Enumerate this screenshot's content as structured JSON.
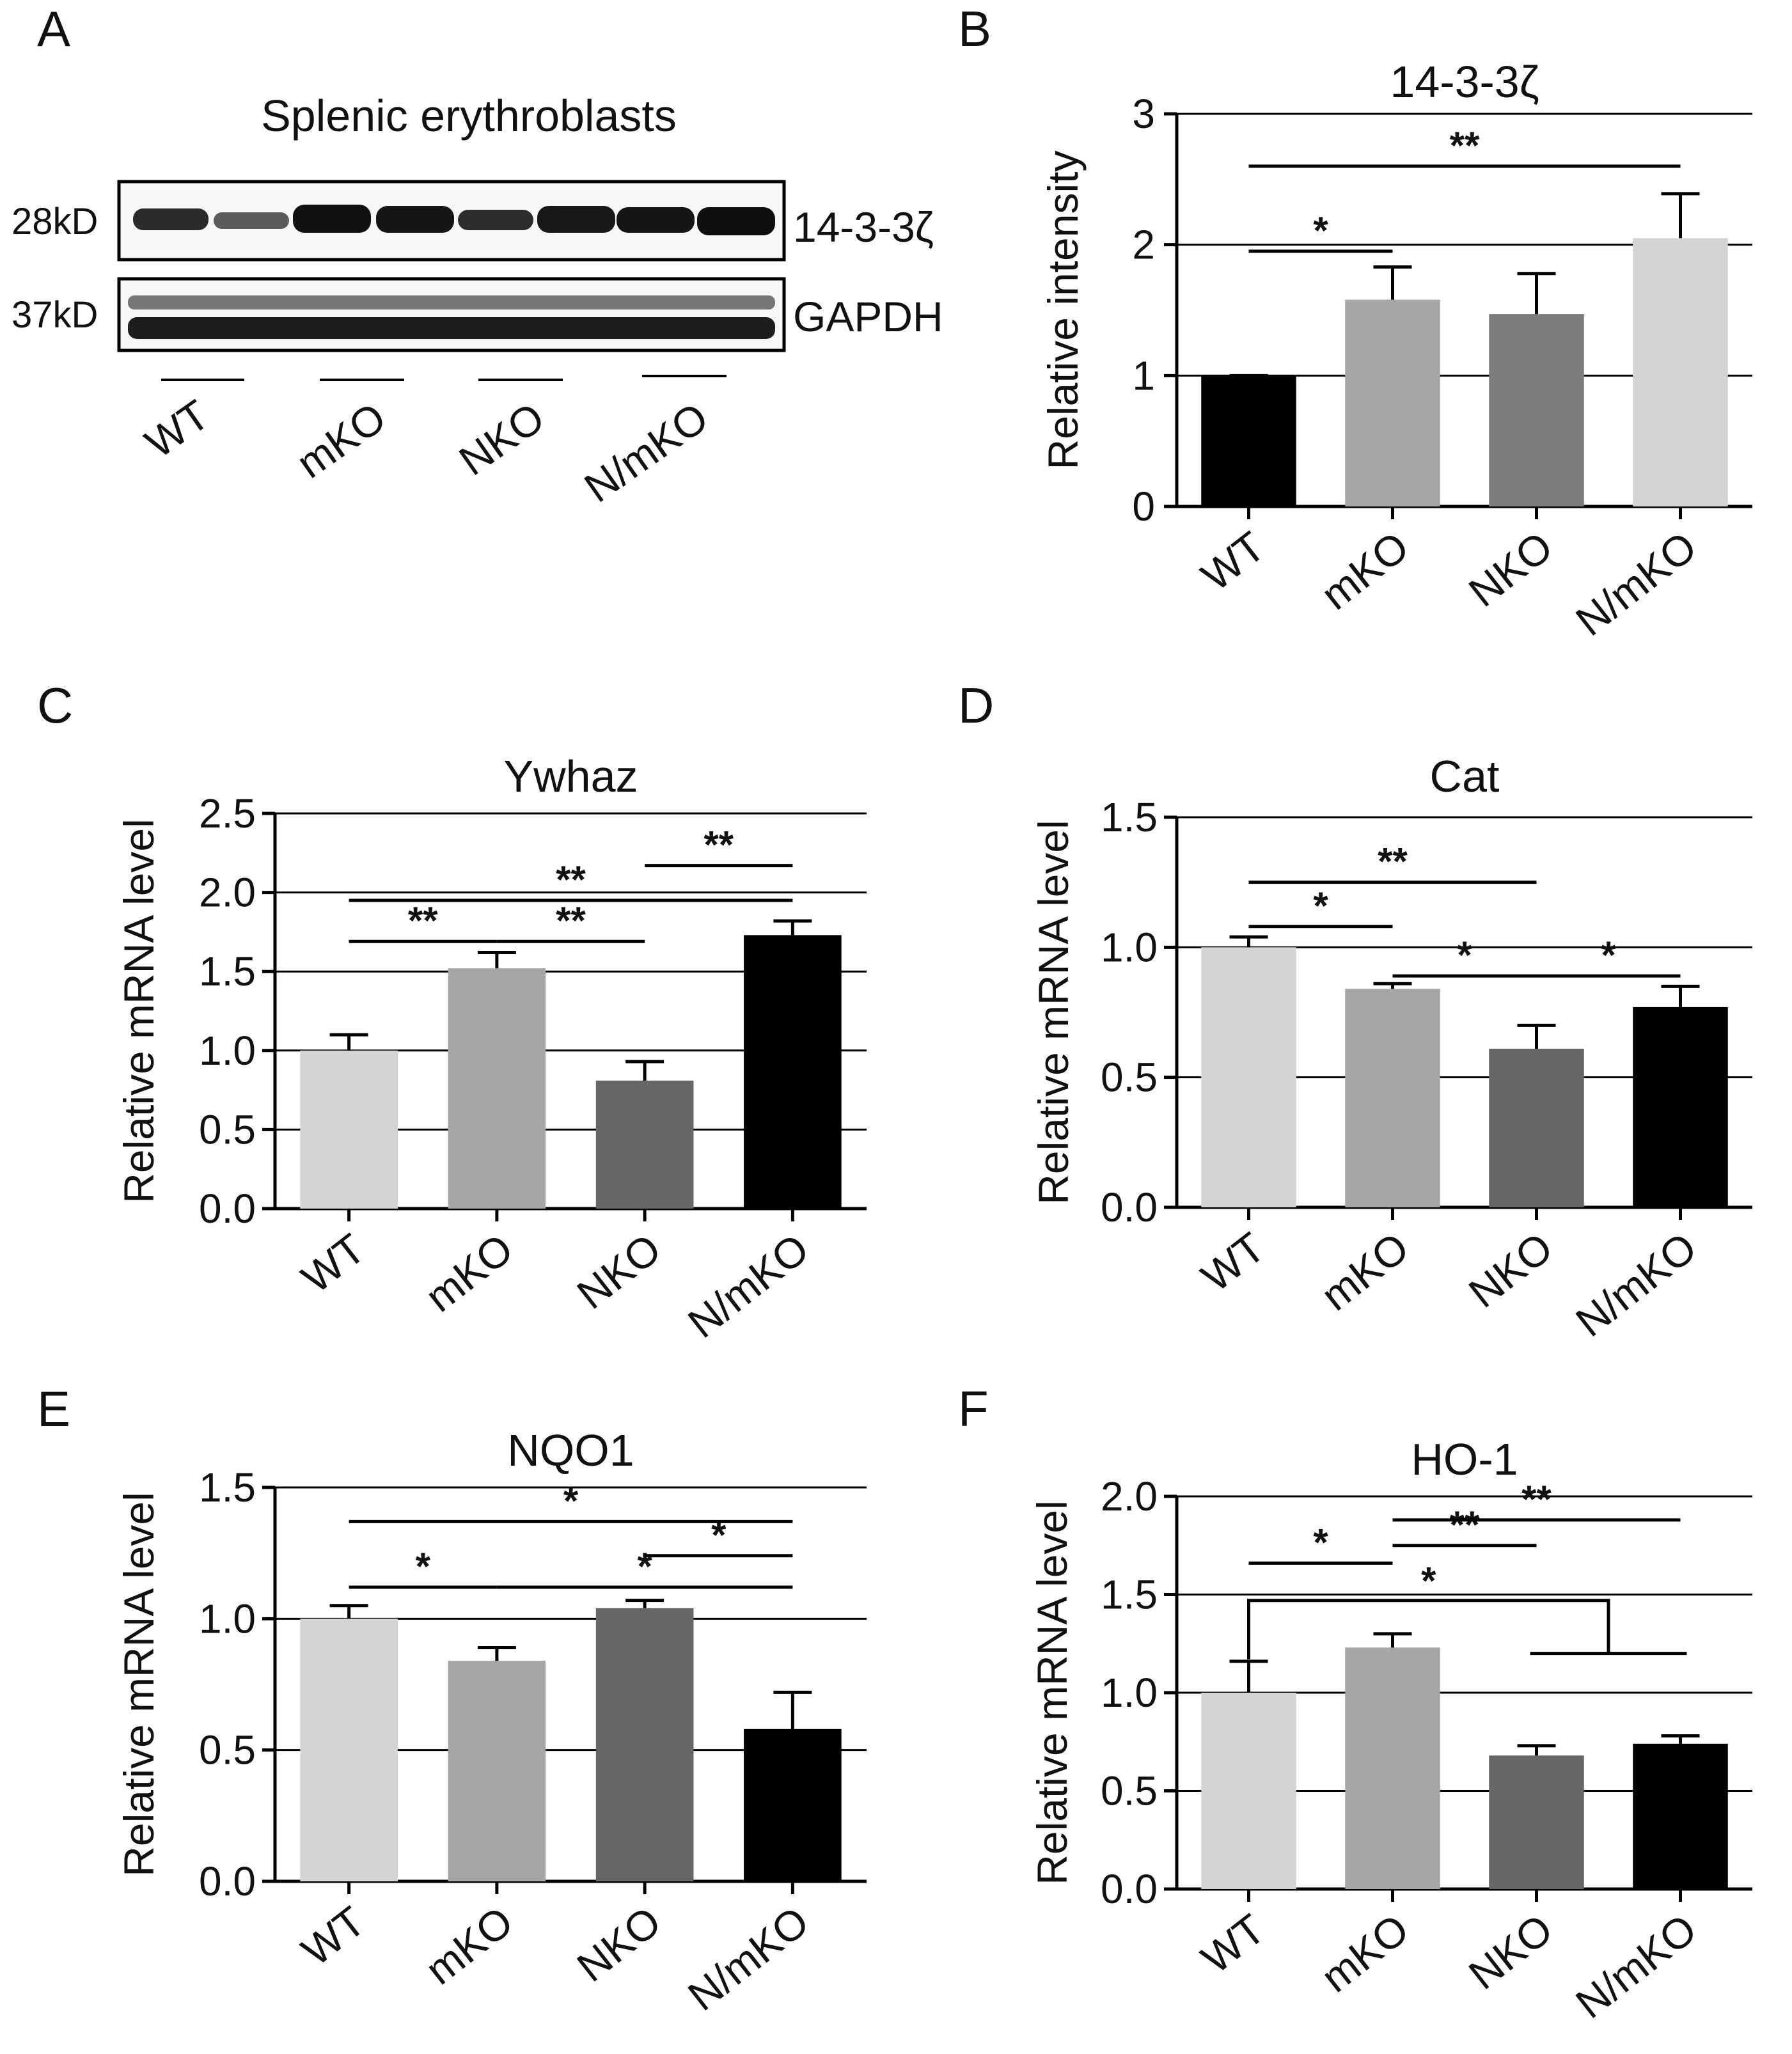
{
  "panels": {
    "A": {
      "letter": "A",
      "title": "Splenic erythroblasts",
      "rows": [
        {
          "mw": "28kD",
          "protein": "14-3-3ζ"
        },
        {
          "mw": "37kD",
          "protein": "GAPDH"
        }
      ],
      "groups": [
        "WT",
        "mKO",
        "NKO",
        "N/mKO"
      ]
    }
  },
  "chart_data": [
    {
      "panel": "B",
      "type": "bar",
      "title": "14-3-3ζ",
      "ylabel": "Relative intensity",
      "xlabel": "",
      "categories": [
        "WT",
        "mKO",
        "NKO",
        "N/mKO"
      ],
      "values": [
        1.0,
        1.58,
        1.47,
        2.05
      ],
      "errors": [
        0,
        0.25,
        0.31,
        0.34
      ],
      "colors": [
        "#000000",
        "#a6a6a8",
        "#7d7d7d",
        "#d4d4d4"
      ],
      "ylim": [
        0,
        3
      ],
      "yticks": [
        0,
        1,
        2,
        3
      ],
      "ytick_labels": [
        "0",
        "1",
        "2",
        "3"
      ],
      "gridlines": [
        1,
        2,
        3
      ],
      "significance": [
        {
          "from": 0,
          "to": 1,
          "y": 1.95,
          "label": "*"
        },
        {
          "from": 0,
          "to": 3,
          "y": 2.6,
          "label": "**"
        }
      ]
    },
    {
      "panel": "C",
      "type": "bar",
      "title": "Ywhaz",
      "ylabel": "Relative mRNA level",
      "xlabel": "",
      "categories": [
        "WT",
        "mKO",
        "NKO",
        "N/mKO"
      ],
      "values": [
        1.0,
        1.52,
        0.81,
        1.73
      ],
      "errors": [
        0.1,
        0.1,
        0.12,
        0.09
      ],
      "colors": [
        "#d4d4d4",
        "#a6a6a8",
        "#666666",
        "#000000"
      ],
      "ylim": [
        0,
        2.5
      ],
      "yticks": [
        0,
        0.5,
        1,
        1.5,
        2,
        2.5
      ],
      "ytick_labels": [
        "0.0",
        "0.5",
        "1.0",
        "1.5",
        "2.0",
        "2.5"
      ],
      "gridlines": [
        0.5,
        1,
        1.5,
        2,
        2.5
      ],
      "significance": [
        {
          "from": 0,
          "to": 1,
          "y": 1.69,
          "label": "**"
        },
        {
          "from": 1,
          "to": 2,
          "y": 1.69,
          "label": "**"
        },
        {
          "from": 0,
          "to": 3,
          "y": 1.95,
          "label": "**"
        },
        {
          "from": 2,
          "to": 3,
          "y": 2.17,
          "label": "**"
        }
      ]
    },
    {
      "panel": "D",
      "type": "bar",
      "title": "Cat",
      "ylabel": "Relative mRNA level",
      "xlabel": "",
      "categories": [
        "WT",
        "mKO",
        "NKO",
        "N/mKO"
      ],
      "values": [
        1.0,
        0.84,
        0.61,
        0.77
      ],
      "errors": [
        0.04,
        0.02,
        0.09,
        0.08
      ],
      "colors": [
        "#d4d4d4",
        "#a6a6a8",
        "#666666",
        "#000000"
      ],
      "ylim": [
        0,
        1.5
      ],
      "yticks": [
        0,
        0.5,
        1,
        1.5
      ],
      "ytick_labels": [
        "0.0",
        "0.5",
        "1.0",
        "1.5"
      ],
      "gridlines": [
        0.5,
        1,
        1.5
      ],
      "significance": [
        {
          "from": 0,
          "to": 1,
          "y": 1.08,
          "label": "*"
        },
        {
          "from": 0,
          "to": 2,
          "y": 1.25,
          "label": "**"
        },
        {
          "from": 1,
          "to": 2,
          "y": 0.89,
          "label": "*"
        },
        {
          "from": 2,
          "to": 3,
          "y": 0.89,
          "label": "*"
        }
      ]
    },
    {
      "panel": "E",
      "type": "bar",
      "title": "NQO1",
      "ylabel": "Relative mRNA level",
      "xlabel": "",
      "categories": [
        "WT",
        "mKO",
        "NKO",
        "N/mKO"
      ],
      "values": [
        1.0,
        0.84,
        1.04,
        0.58
      ],
      "errors": [
        0.05,
        0.05,
        0.03,
        0.14
      ],
      "colors": [
        "#d4d4d4",
        "#a6a6a8",
        "#666666",
        "#000000"
      ],
      "ylim": [
        0,
        1.5
      ],
      "yticks": [
        0,
        0.5,
        1,
        1.5
      ],
      "ytick_labels": [
        "0.0",
        "0.5",
        "1.0",
        "1.5"
      ],
      "gridlines": [
        0.5,
        1,
        1.5
      ],
      "significance": [
        {
          "from": 0,
          "to": 1,
          "y": 1.12,
          "label": "*"
        },
        {
          "from": 1,
          "to": 3,
          "y": 1.12,
          "label": "*"
        },
        {
          "from": 2,
          "to": 3,
          "y": 1.24,
          "label": "*"
        },
        {
          "from": 0,
          "to": 3,
          "y": 1.37,
          "label": "*"
        }
      ]
    },
    {
      "panel": "F",
      "type": "bar",
      "title": "HO-1",
      "ylabel": "Relative mRNA level",
      "xlabel": "",
      "categories": [
        "WT",
        "mKO",
        "NKO",
        "N/mKO"
      ],
      "values": [
        1.0,
        1.23,
        0.68,
        0.74
      ],
      "errors": [
        0.16,
        0.07,
        0.05,
        0.04
      ],
      "colors": [
        "#d4d4d4",
        "#a6a6a8",
        "#666666",
        "#000000"
      ],
      "ylim": [
        0,
        2
      ],
      "yticks": [
        0,
        0.5,
        1,
        1.5,
        2
      ],
      "ytick_labels": [
        "0.0",
        "0.5",
        "1.0",
        "1.5",
        "2.0"
      ],
      "gridlines": [
        0.5,
        1,
        1.5,
        2
      ],
      "significance": [
        {
          "from": 0,
          "to": 1,
          "y": 1.66,
          "label": "*"
        },
        {
          "from": 1,
          "to": 2,
          "y": 1.75,
          "label": "**"
        },
        {
          "from": 1,
          "to": 3,
          "y": 1.88,
          "label": "**"
        },
        {
          "from": 0,
          "to": 2.5,
          "y": 1.47,
          "label": "*",
          "bracket": true,
          "group_from": 2,
          "group_to": 3
        }
      ]
    }
  ]
}
